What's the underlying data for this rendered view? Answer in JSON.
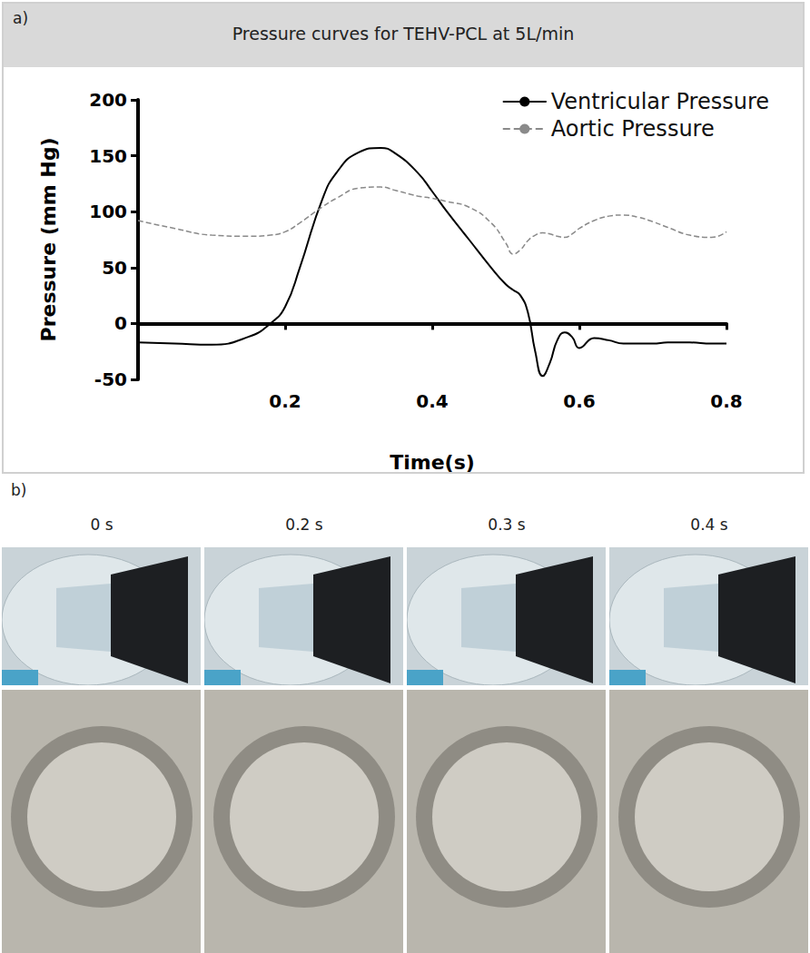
{
  "chart_data": {
    "type": "line",
    "title": "Pressure curves for TEHV-PCL at 5L/min",
    "x_label": "Time(s)",
    "y_label": "Pressure (mm Hg)",
    "x": [
      0,
      0.05,
      0.1,
      0.15,
      0.18,
      0.2,
      0.22,
      0.25,
      0.27,
      0.3,
      0.33,
      0.35,
      0.38,
      0.4,
      0.42,
      0.45,
      0.48,
      0.5,
      0.51,
      0.52,
      0.53,
      0.54,
      0.55,
      0.56,
      0.57,
      0.58,
      0.59,
      0.6,
      0.62,
      0.64,
      0.66,
      0.68,
      0.7,
      0.72,
      0.75,
      0.78,
      0.8
    ],
    "series": [
      {
        "name": "Ventricular Pressure",
        "color": "#000000",
        "line_style": "solid",
        "marker": "none",
        "values": [
          -17,
          -18,
          -19,
          -12,
          0,
          15,
          50,
          110,
          135,
          153,
          157,
          152,
          135,
          118,
          100,
          75,
          50,
          35,
          30,
          25,
          10,
          -25,
          -47,
          -35,
          -15,
          -8,
          -12,
          -22,
          -13,
          -15,
          -18,
          -18,
          -18,
          -17,
          -17,
          -18,
          -18
        ]
      },
      {
        "name": "Aortic Pressure",
        "color": "#8a8a8a",
        "line_style": "dashed",
        "marker": "none",
        "values": [
          92,
          85,
          79,
          78,
          79,
          82,
          90,
          104,
          112,
          121,
          122,
          119,
          114,
          112,
          109,
          104,
          90,
          72,
          62,
          66,
          74,
          79,
          81,
          80,
          78,
          77,
          80,
          85,
          92,
          96,
          97,
          95,
          91,
          86,
          79,
          77,
          82
        ]
      }
    ],
    "xlim": [
      0,
      0.8
    ],
    "xticks": [
      0.2,
      0.4,
      0.6,
      0.8
    ],
    "ylim": [
      -50,
      200
    ],
    "yticks": [
      -50,
      0,
      50,
      100,
      150,
      200
    ],
    "grid": false,
    "legend": "upper right"
  },
  "panels": {
    "a": {
      "label": "a)"
    },
    "b": {
      "label": "b)",
      "frames": [
        "0 s",
        "0.2 s",
        "0.3 s",
        "0.4 s"
      ]
    }
  }
}
